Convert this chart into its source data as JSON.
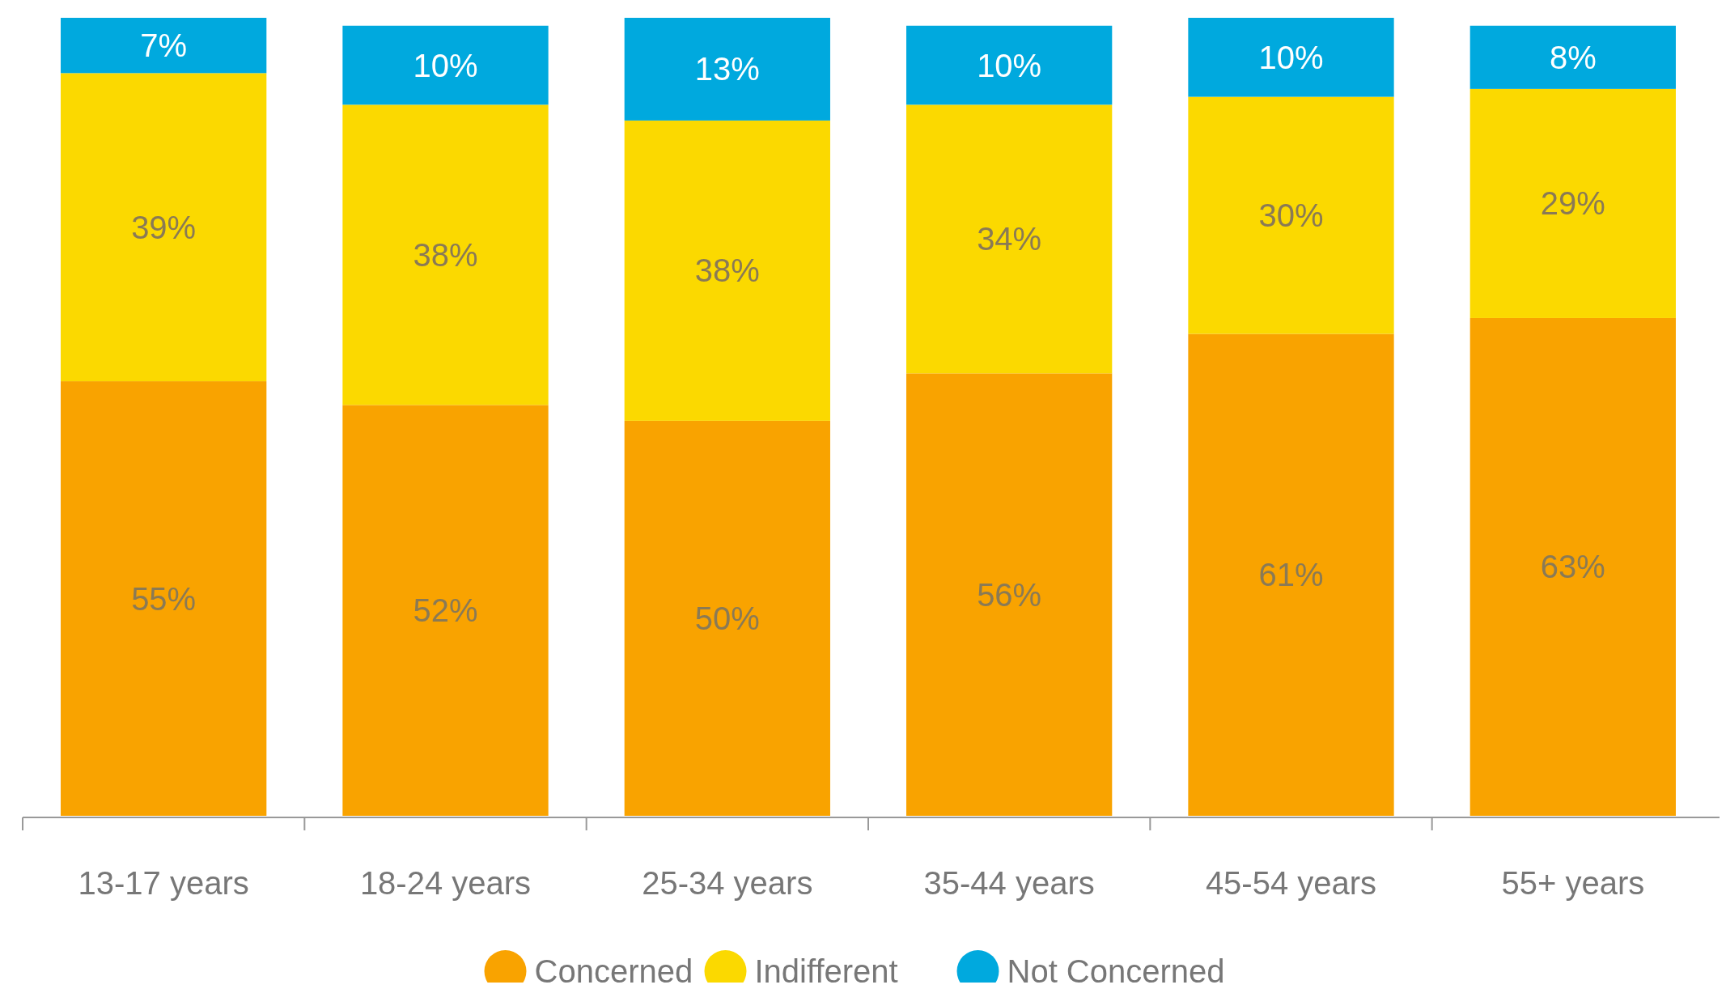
{
  "chart_data": {
    "type": "bar",
    "stacked": true,
    "categories": [
      "13-17 years",
      "18-24 years",
      "25-34 years",
      "35-44 years",
      "45-54 years",
      "55+ years"
    ],
    "series": [
      {
        "name": "Concerned",
        "color": "#f9a300",
        "values": [
          55,
          52,
          50,
          56,
          61,
          63
        ],
        "value_labels": [
          "55%",
          "52%",
          "50%",
          "56%",
          "61%",
          "63%"
        ]
      },
      {
        "name": "Indifferent",
        "color": "#fbd900",
        "values": [
          39,
          38,
          38,
          34,
          30,
          29
        ],
        "value_labels": [
          "39%",
          "38%",
          "38%",
          "34%",
          "30%",
          "29%"
        ]
      },
      {
        "name": "Not Concerned",
        "color": "#00a9de",
        "values": [
          7,
          10,
          13,
          10,
          10,
          8
        ],
        "value_labels": [
          "7%",
          "10%",
          "13%",
          "10%",
          "10%",
          "8%"
        ]
      }
    ],
    "legend": "bottom",
    "grid": false
  }
}
